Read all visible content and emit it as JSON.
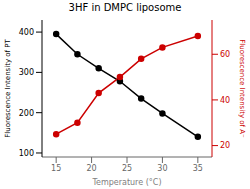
{
  "chart_data": {
    "type": "line",
    "title": "3HF in DMPC liposome",
    "xlabel": "Temperature  (°C)",
    "ylabel": "Fluorescence Intensity of PT",
    "y2label": "Fluorescence Intensity of A⁻",
    "x": [
      15,
      18,
      21,
      24,
      27,
      30,
      35
    ],
    "series": [
      {
        "color": "#000000",
        "marker": "circle",
        "values": [
          395,
          345,
          310,
          278,
          235,
          198,
          140
        ]
      },
      {
        "color": "#cc0000",
        "marker": "circle",
        "axis": "y2",
        "values": [
          25,
          30,
          43,
          50,
          58,
          63,
          68
        ]
      }
    ],
    "xlim": [
      13,
      37
    ],
    "xticks": [
      15,
      20,
      25,
      30,
      35
    ],
    "ylim": [
      90,
      430
    ],
    "yticks": [
      100,
      200,
      300,
      400
    ],
    "y2lim": [
      15,
      75
    ],
    "y2ticks": [
      20,
      40,
      60
    ],
    "grid": false
  }
}
